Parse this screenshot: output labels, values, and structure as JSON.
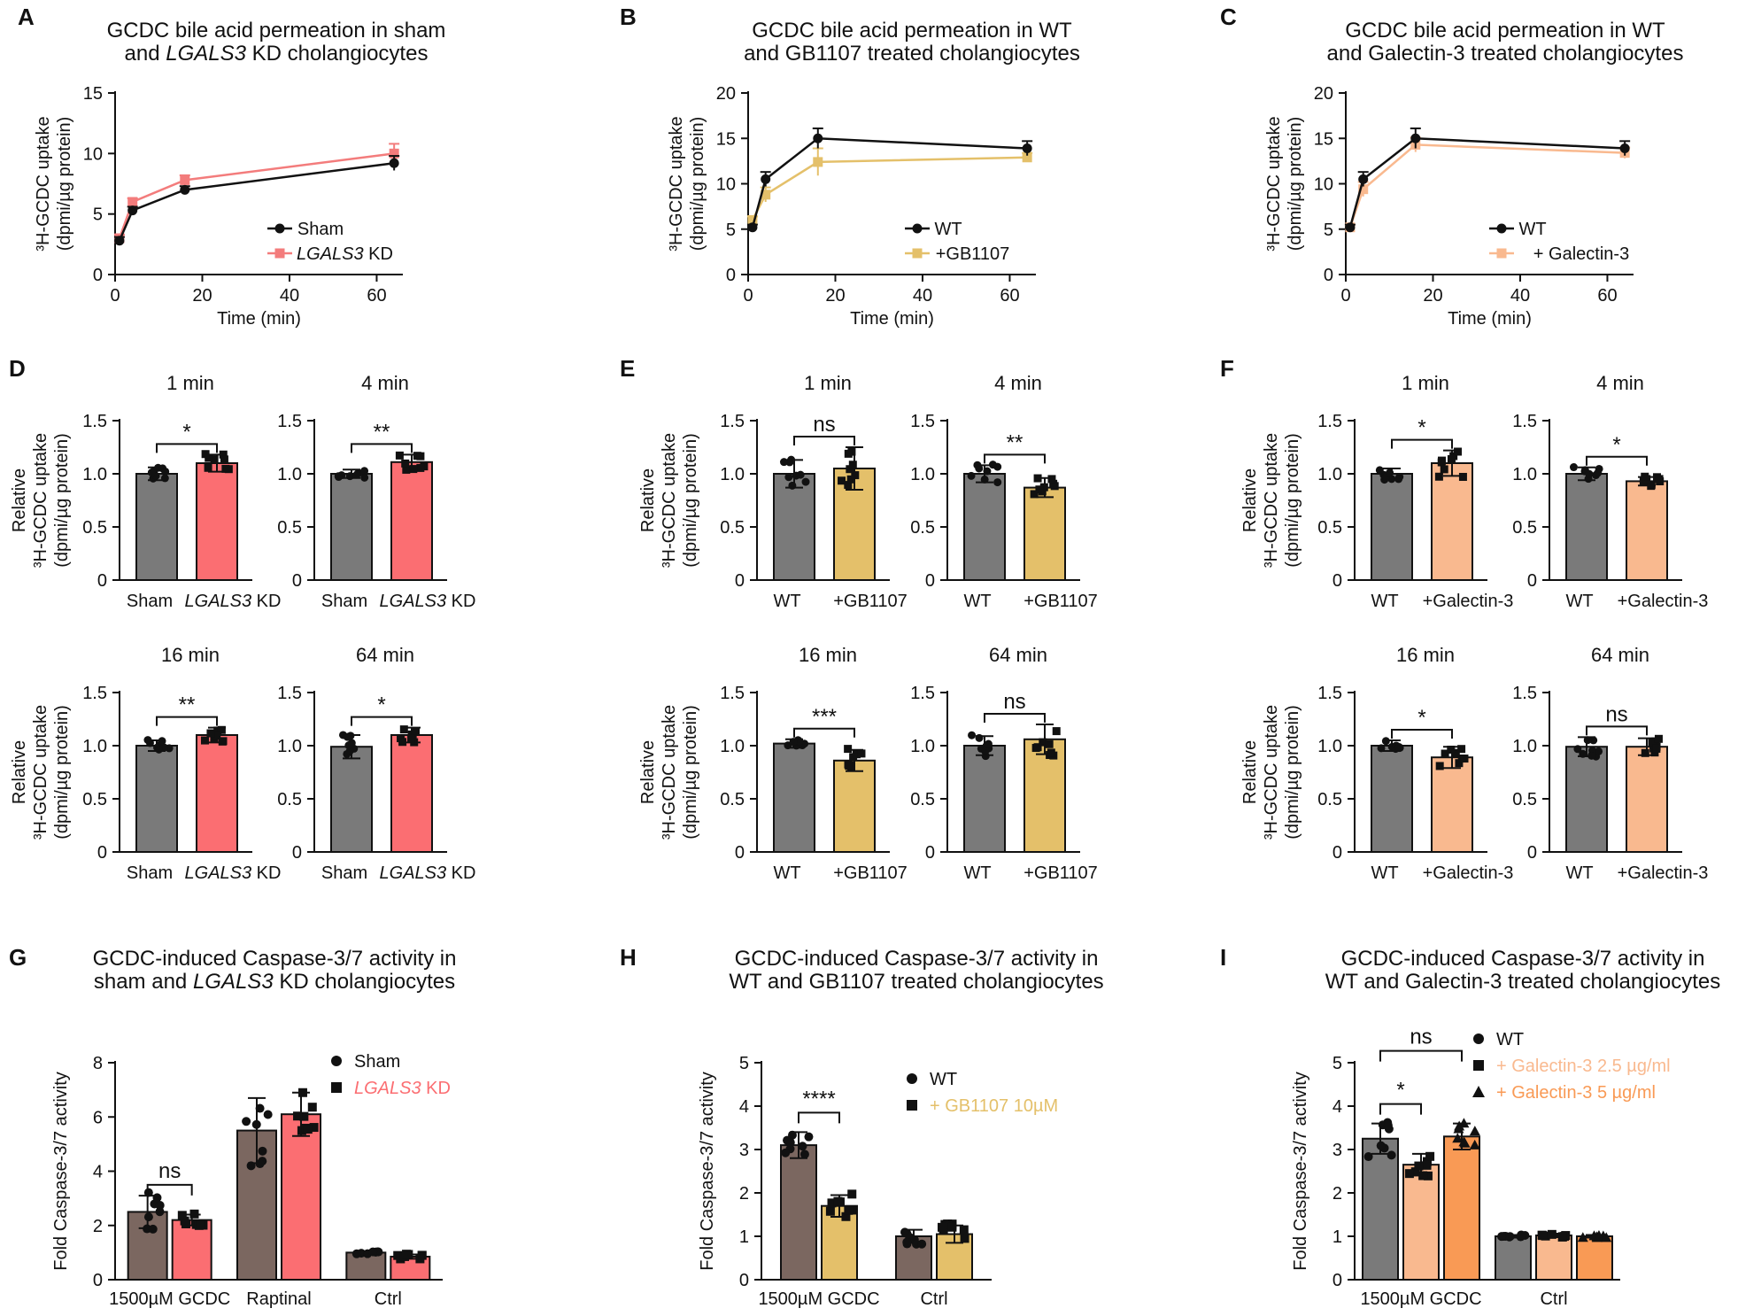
{
  "figure": {
    "letters": [
      "A",
      "B",
      "C",
      "D",
      "E",
      "F",
      "G",
      "H",
      "I"
    ]
  },
  "colors": {
    "black": "#111111",
    "gray": "#7a7a7a",
    "salmon": "#f37c7c",
    "salmon_bar": "#fb6e72",
    "gold": "#e4c06a",
    "peach": "#f9b98f",
    "orange": "#f99a55",
    "brown": "#7b6760"
  },
  "chart_data": [
    {
      "id": "A",
      "type": "line",
      "title": [
        "GCDC bile acid permeation in sham",
        "and LGALS3 KD cholangiocytes"
      ],
      "xlabel": "Time (min)",
      "ylabel": [
        "³H-GCDC uptake",
        "(dpmi/µg protein)"
      ],
      "xlim": [
        0,
        66
      ],
      "ylim": [
        0,
        15
      ],
      "xticks": [
        0,
        20,
        40,
        60
      ],
      "yticks": [
        0,
        5,
        10,
        15
      ],
      "x": [
        1,
        4,
        16,
        64
      ],
      "series": [
        {
          "name": "Sham",
          "color": "#111111",
          "marker": "circle",
          "values": [
            2.8,
            5.3,
            7.0,
            9.2
          ],
          "err": [
            0.3,
            0.3,
            0.3,
            0.6
          ]
        },
        {
          "name": "LGALS3 KD",
          "color": "#f37c7c",
          "marker": "square",
          "values": [
            3.0,
            6.0,
            7.8,
            10.0
          ],
          "err": [
            0.3,
            0.3,
            0.4,
            0.8
          ]
        }
      ]
    },
    {
      "id": "B",
      "type": "line",
      "title": [
        "GCDC bile acid permeation in WT",
        "and GB1107 treated cholangiocytes"
      ],
      "xlabel": "Time (min)",
      "ylabel": [
        "³H-GCDC uptake",
        "(dpmi/µg protein)"
      ],
      "xlim": [
        0,
        66
      ],
      "ylim": [
        0,
        20
      ],
      "xticks": [
        0,
        20,
        40,
        60
      ],
      "yticks": [
        0,
        5,
        10,
        15,
        20
      ],
      "x": [
        1,
        4,
        16,
        64
      ],
      "series": [
        {
          "name": "WT",
          "color": "#111111",
          "marker": "circle",
          "values": [
            5.2,
            10.5,
            15.0,
            13.9
          ],
          "err": [
            0.3,
            0.8,
            1.1,
            0.8
          ]
        },
        {
          "name": "+GB1107",
          "color": "#e4c06a",
          "marker": "square",
          "values": [
            6.0,
            8.8,
            12.4,
            12.9
          ],
          "err": [
            0.4,
            0.8,
            1.5,
            0.5
          ]
        }
      ]
    },
    {
      "id": "C",
      "type": "line",
      "title": [
        "GCDC bile acid permeation in WT",
        "and Galectin-3 treated cholangiocytes"
      ],
      "xlabel": "Time (min)",
      "ylabel": [
        "³H-GCDC uptake",
        "(dpmi/µg protein)"
      ],
      "xlim": [
        0,
        66
      ],
      "ylim": [
        0,
        20
      ],
      "xticks": [
        0,
        20,
        40,
        60
      ],
      "yticks": [
        0,
        5,
        10,
        15,
        20
      ],
      "x": [
        1,
        4,
        16,
        64
      ],
      "series": [
        {
          "name": "WT",
          "color": "#111111",
          "marker": "circle",
          "values": [
            5.2,
            10.5,
            15.0,
            13.9
          ],
          "err": [
            0.3,
            0.8,
            1.1,
            0.8
          ]
        },
        {
          "name": "+ Galectin-3",
          "color": "#f9b98f",
          "marker": "square",
          "values": [
            5.2,
            9.4,
            14.3,
            13.4
          ],
          "err": [
            0.3,
            0.8,
            0.8,
            0.6
          ]
        }
      ]
    },
    {
      "id": "D",
      "type": "bar",
      "ylabel": [
        "Relative",
        "³H-GCDC uptake",
        "(dpmi/µg protein)"
      ],
      "ylim": [
        0,
        1.5
      ],
      "yticks": [
        "0",
        "0.5",
        "1.0",
        "1.5"
      ],
      "colors": [
        "#7a7a7a",
        "#fb6e72"
      ],
      "subplots": [
        {
          "title": "1 min",
          "categories": [
            "Sham",
            "LGALS3 KD"
          ],
          "values": [
            1.0,
            1.1
          ],
          "err": [
            0.06,
            0.08
          ],
          "sig": "*"
        },
        {
          "title": "4 min",
          "categories": [
            "Sham",
            "LGALS3 KD"
          ],
          "values": [
            1.0,
            1.11
          ],
          "err": [
            0.04,
            0.07
          ],
          "sig": "**"
        },
        {
          "title": "16 min",
          "categories": [
            "Sham",
            "LGALS3 KD"
          ],
          "values": [
            1.0,
            1.1
          ],
          "err": [
            0.05,
            0.07
          ],
          "sig": "**"
        },
        {
          "title": "64 min",
          "categories": [
            "Sham",
            "LGALS3 KD"
          ],
          "values": [
            0.99,
            1.1
          ],
          "err": [
            0.11,
            0.07
          ],
          "sig": "*"
        }
      ]
    },
    {
      "id": "E",
      "type": "bar",
      "ylabel": [
        "Relative",
        "³H-GCDC uptake",
        "(dpmi/µg protein)"
      ],
      "ylim": [
        0,
        1.5
      ],
      "yticks": [
        "0",
        "0.5",
        "1.0",
        "1.5"
      ],
      "colors": [
        "#7a7a7a",
        "#e4c06a"
      ],
      "subplots": [
        {
          "title": "1 min",
          "categories": [
            "WT",
            "+GB1107"
          ],
          "values": [
            1.0,
            1.05
          ],
          "err": [
            0.13,
            0.2
          ],
          "sig": "ns"
        },
        {
          "title": "4 min",
          "categories": [
            "WT",
            "+GB1107"
          ],
          "values": [
            1.0,
            0.87
          ],
          "err": [
            0.08,
            0.09
          ],
          "sig": "**"
        },
        {
          "title": "16 min",
          "categories": [
            "WT",
            "+GB1107"
          ],
          "values": [
            1.02,
            0.86
          ],
          "err": [
            0.04,
            0.1
          ],
          "sig": "***"
        },
        {
          "title": "64 min",
          "categories": [
            "WT",
            "+GB1107"
          ],
          "values": [
            1.0,
            1.06
          ],
          "err": [
            0.09,
            0.14
          ],
          "sig": "ns"
        }
      ]
    },
    {
      "id": "F",
      "type": "bar",
      "ylabel": [
        "Relative",
        "³H-GCDC uptake",
        "(dpmi/µg protein)"
      ],
      "ylim": [
        0,
        1.5
      ],
      "yticks": [
        "0",
        "0.5",
        "1.0",
        "1.5"
      ],
      "colors": [
        "#7a7a7a",
        "#f9b98f"
      ],
      "subplots": [
        {
          "title": "1 min",
          "categories": [
            "WT",
            "+Galectin-3"
          ],
          "values": [
            1.0,
            1.1
          ],
          "err": [
            0.05,
            0.12
          ],
          "sig": "*"
        },
        {
          "title": "4 min",
          "categories": [
            "WT",
            "+Galectin-3"
          ],
          "values": [
            1.0,
            0.93
          ],
          "err": [
            0.06,
            0.04
          ],
          "sig": "*"
        },
        {
          "title": "16 min",
          "categories": [
            "WT",
            "+Galectin-3"
          ],
          "values": [
            1.0,
            0.89
          ],
          "err": [
            0.05,
            0.1
          ],
          "sig": "*"
        },
        {
          "title": "64 min",
          "categories": [
            "WT",
            "+Galectin-3"
          ],
          "values": [
            0.99,
            0.99
          ],
          "err": [
            0.09,
            0.08
          ],
          "sig": "ns"
        }
      ]
    },
    {
      "id": "G",
      "type": "bar",
      "title": [
        "GCDC-induced Caspase-3/7 activity in",
        "sham and LGALS3 KD cholangiocytes"
      ],
      "ylabel": [
        "Fold Caspase-3/7 activity"
      ],
      "ylim": [
        0,
        8
      ],
      "yticks": [
        "0",
        "2",
        "4",
        "6",
        "8"
      ],
      "categories": [
        "1500µM GCDC",
        "Raptinal",
        "Ctrl"
      ],
      "series": [
        {
          "name": "Sham",
          "color": "#7b6760",
          "values": [
            2.5,
            5.5,
            1.0
          ],
          "err": [
            0.6,
            1.2,
            0.05
          ]
        },
        {
          "name": "LGALS3 KD",
          "color": "#fb6e72",
          "values": [
            2.2,
            6.1,
            0.85
          ],
          "err": [
            0.2,
            0.8,
            0.08
          ]
        }
      ],
      "annotations": [
        {
          "text": "ns",
          "group": 0
        }
      ]
    },
    {
      "id": "H",
      "type": "bar",
      "title": [
        "GCDC-induced Caspase-3/7 activity in",
        "WT and GB1107 treated cholangiocytes"
      ],
      "ylabel": [
        "Fold Caspase-3/7 activity"
      ],
      "ylim": [
        0,
        5
      ],
      "yticks": [
        "0",
        "1",
        "2",
        "3",
        "4",
        "5"
      ],
      "categories": [
        "1500µM GCDC",
        "Ctrl"
      ],
      "series": [
        {
          "name": "WT",
          "color": "#7b6760",
          "values": [
            3.1,
            1.0
          ],
          "err": [
            0.3,
            0.15
          ]
        },
        {
          "name": "+ GB1107 10µM",
          "color": "#e4c06a",
          "values": [
            1.7,
            1.05
          ],
          "err": [
            0.25,
            0.2
          ]
        }
      ],
      "annotations": [
        {
          "text": "****",
          "group": 0
        }
      ]
    },
    {
      "id": "I",
      "type": "bar",
      "title": [
        "GCDC-induced Caspase-3/7 activity in",
        "WT and Galectin-3 treated cholangiocytes"
      ],
      "ylabel": [
        "Fold Caspase-3/7 activity"
      ],
      "ylim": [
        0,
        5
      ],
      "yticks": [
        "0",
        "1",
        "2",
        "3",
        "4",
        "5"
      ],
      "categories": [
        "1500µM GCDC",
        "Ctrl"
      ],
      "series": [
        {
          "name": "WT",
          "color": "#7a7a7a",
          "values": [
            3.25,
            1.0
          ],
          "err": [
            0.35,
            0.03
          ]
        },
        {
          "name": "+ Galectin-3 2.5 µg/ml",
          "color": "#f9b98f",
          "values": [
            2.65,
            1.02
          ],
          "err": [
            0.25,
            0.04
          ]
        },
        {
          "name": "+ Galectin-3 5 µg/ml",
          "color": "#f99a55",
          "values": [
            3.3,
            1.0
          ],
          "err": [
            0.3,
            0.03
          ]
        }
      ],
      "annotations": [
        {
          "text": "ns",
          "from": 0,
          "to": 2
        },
        {
          "text": "*",
          "from": 0,
          "to": 1
        }
      ]
    }
  ]
}
